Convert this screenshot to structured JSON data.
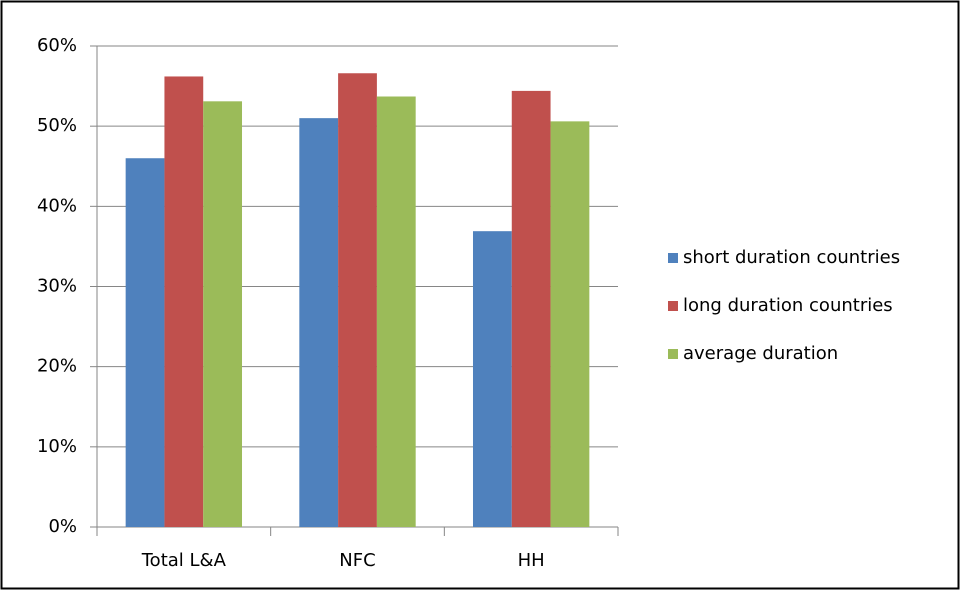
{
  "chart_data": {
    "type": "bar",
    "categories": [
      "Total L&A",
      "NFC",
      "HH"
    ],
    "series": [
      {
        "name": "short duration countries",
        "color": "#4f81bd",
        "values": [
          46.0,
          51.0,
          36.9
        ]
      },
      {
        "name": "long duration countries",
        "color": "#c0504d",
        "values": [
          56.2,
          56.6,
          54.4
        ]
      },
      {
        "name": "average duration",
        "color": "#9bbb59",
        "values": [
          53.1,
          53.7,
          50.6
        ]
      }
    ],
    "ylim": [
      0,
      60
    ],
    "yticks": [
      {
        "value": 0,
        "label": "0%"
      },
      {
        "value": 10,
        "label": "10%"
      },
      {
        "value": 20,
        "label": "20%"
      },
      {
        "value": 30,
        "label": "30%"
      },
      {
        "value": 40,
        "label": "40%"
      },
      {
        "value": 50,
        "label": "50%"
      },
      {
        "value": 60,
        "label": "60%"
      }
    ],
    "grid": true,
    "legend": "right"
  }
}
